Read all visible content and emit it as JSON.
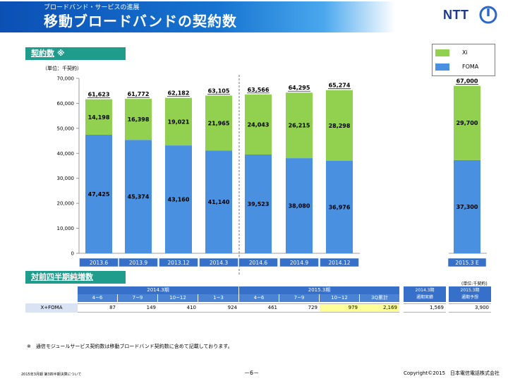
{
  "header": {
    "subtitle": "ブロードバンド・サービスの進展",
    "title": "移動ブロードバンドの契約数",
    "logo": "NTT",
    "band_color": "#1673d0"
  },
  "section1": {
    "label": "契約数",
    "mark": "※"
  },
  "unit": "（単位：千契約）",
  "legend": {
    "items": [
      {
        "label": "Xi",
        "color": "#92d050"
      },
      {
        "label": "FOMA",
        "color": "#4a90e0"
      }
    ]
  },
  "chart_data": {
    "type": "bar",
    "stacked": true,
    "categories": [
      "2013.6",
      "2013.9",
      "2013.12",
      "2014.3",
      "2014.6",
      "2014.9",
      "2014.12",
      "2015.3 E"
    ],
    "series": [
      {
        "name": "FOMA",
        "color": "#4a90e0",
        "values": [
          47425,
          45374,
          43160,
          41140,
          39523,
          38080,
          36976,
          37300
        ],
        "labels": [
          "47,425",
          "45,374",
          "43,160",
          "41,140",
          "39,523",
          "38,080",
          "36,976",
          "37,300"
        ]
      },
      {
        "name": "Xi",
        "color": "#92d050",
        "values": [
          14198,
          16398,
          19021,
          21965,
          24043,
          26215,
          28298,
          29700
        ],
        "labels": [
          "14,198",
          "16,398",
          "19,021",
          "21,965",
          "24,043",
          "26,215",
          "28,298",
          "29,700"
        ]
      }
    ],
    "totals": [
      "61,623",
      "61,772",
      "62,182",
      "63,105",
      "63,566",
      "64,295",
      "65,274",
      "67,000"
    ],
    "y_ticks": [
      "0",
      "10,000",
      "20,000",
      "30,000",
      "40,000",
      "50,000",
      "60,000",
      "70,000"
    ],
    "ylim": [
      0,
      70000
    ],
    "ylabel": "（単位：千契約）",
    "legend": "top-right",
    "grid": false
  },
  "section2": {
    "label": "対前四半期純増数"
  },
  "table": {
    "unit": "(単位:千契約)",
    "group1": "2014.3期",
    "group2": "2015.3期",
    "quarters": [
      "4~6",
      "7~9",
      "10~12",
      "1~3",
      "4~6",
      "7~9",
      "10~12",
      "3Q累計"
    ],
    "extra_headers": [
      {
        "line1": "2014.3期",
        "line2": "通期実績"
      },
      {
        "line1": "2015.3期",
        "line2": "通期予想"
      }
    ],
    "row_label": "X+FOMA",
    "row_values": [
      "87",
      "149",
      "410",
      "924",
      "461",
      "729",
      "979",
      "2,169"
    ],
    "extra_values": [
      "1,569",
      "3,900"
    ]
  },
  "footnote": "※　通信モジュールサービス契約数は移動ブロードバンド契約数に含めて記載しております。",
  "footer": {
    "left": "2015年3月期 第3四半期決算について",
    "page": "－6－",
    "copyright": "Copyright©2015　日本電信電話株式会社"
  }
}
